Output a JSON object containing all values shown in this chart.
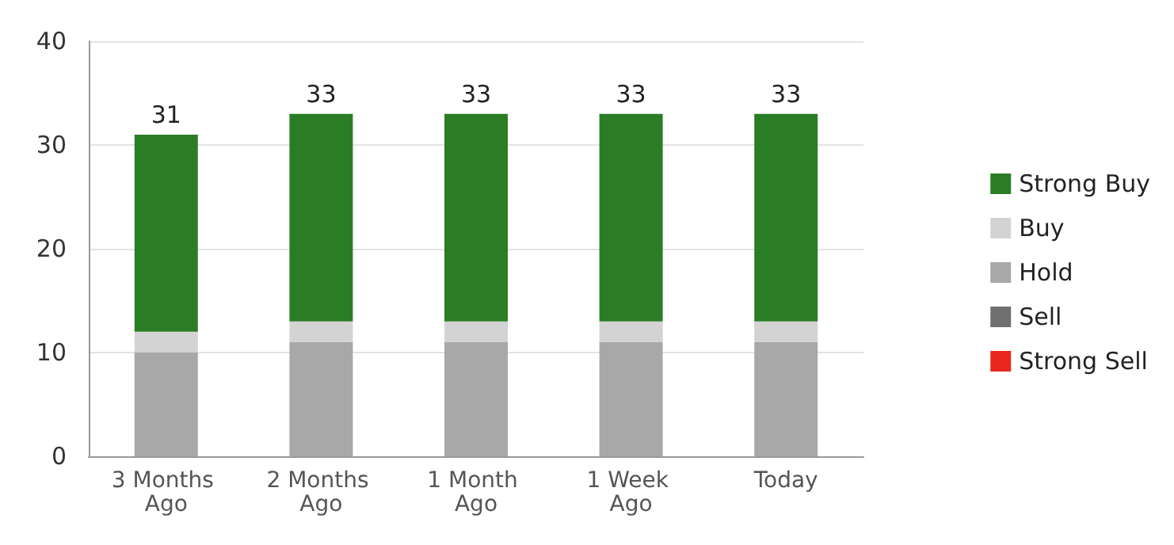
{
  "chart_data": {
    "type": "bar",
    "stacked": true,
    "categories": [
      "3 Months Ago",
      "2 Months Ago",
      "1 Month Ago",
      "1 Week Ago",
      "Today"
    ],
    "series": [
      {
        "name": "Strong Sell",
        "color": "#e8271f",
        "values": [
          0,
          0,
          0,
          0,
          0
        ]
      },
      {
        "name": "Sell",
        "color": "#707070",
        "values": [
          0,
          0,
          0,
          0,
          0
        ]
      },
      {
        "name": "Hold",
        "color": "#a8a8a8",
        "values": [
          10,
          11,
          11,
          11,
          11
        ]
      },
      {
        "name": "Buy",
        "color": "#d3d3d3",
        "values": [
          2,
          2,
          2,
          2,
          2
        ]
      },
      {
        "name": "Strong Buy",
        "color": "#2a7d24",
        "values": [
          19,
          20,
          20,
          20,
          20
        ]
      }
    ],
    "totals": [
      "31",
      "33",
      "33",
      "33",
      "33"
    ],
    "ylim": [
      0,
      40
    ],
    "yticks": [
      0,
      10,
      20,
      30,
      40
    ],
    "grid": "y",
    "legend": "right"
  }
}
